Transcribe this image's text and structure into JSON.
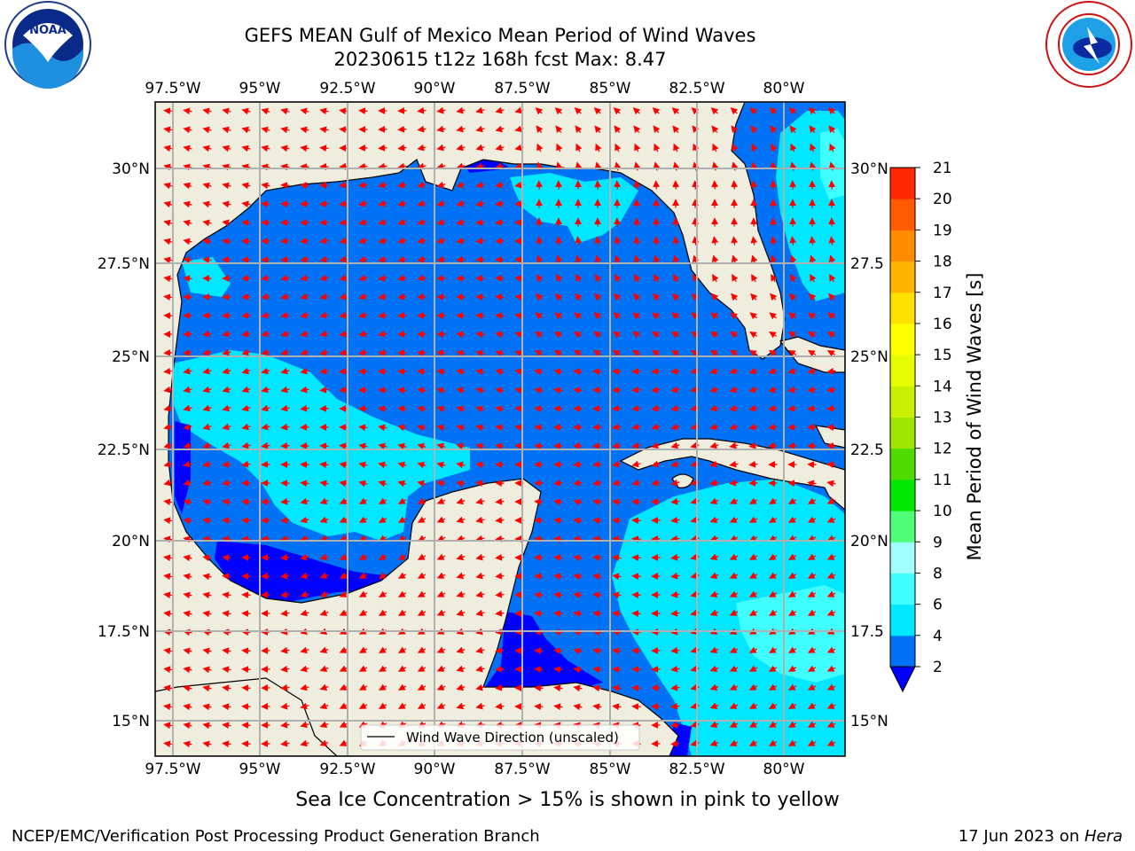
{
  "header": {
    "title_line1": "GEFS MEAN Gulf of Mexico Mean Period of Wind Waves",
    "title_line2": "20230615 t12z 168h fcst   Max: 8.47"
  },
  "logos": {
    "left": "noaa-logo",
    "right": "nws-logo"
  },
  "map": {
    "lon_labels": [
      "97.5°W",
      "95°W",
      "92.5°W",
      "90°W",
      "87.5°W",
      "85°W",
      "82.5°W",
      "80°W"
    ],
    "lat_labels_left": [
      "30°N",
      "27.5°N",
      "25°N",
      "22.5°N",
      "20°N",
      "17.5°N",
      "15°N"
    ],
    "lat_labels_right": [
      "30°N",
      "27.5",
      "25°N",
      "22.5",
      "20°N",
      "17.5",
      "15°N"
    ],
    "lon_range": [
      -98,
      -78.3
    ],
    "lat_range": [
      14,
      31.7
    ],
    "land_color": "#efedde",
    "legend_label": "Wind Wave Direction (unscaled)",
    "arrow_color": "#ff0000"
  },
  "colorbar": {
    "label": "Mean Period of Wind Waves [s]",
    "tick_labels": [
      "2",
      "4",
      "6",
      "8",
      "9",
      "10",
      "11",
      "12",
      "13",
      "14",
      "15",
      "16",
      "17",
      "18",
      "19",
      "20",
      "21"
    ],
    "colors": [
      "#0072f5",
      "#00e8ff",
      "#40ffff",
      "#a0ffff",
      "#50ff78",
      "#00e800",
      "#50dc00",
      "#9ee600",
      "#c8f000",
      "#e6ff00",
      "#ffff00",
      "#ffe000",
      "#ffb400",
      "#ff8c00",
      "#ff5a00",
      "#ff2800",
      "#ff0000"
    ],
    "extend_color": "#0000ff"
  },
  "footnote": "Sea Ice Concentration > 15% is shown in pink to yellow",
  "footer": {
    "left": "NCEP/EMC/Verification Post Processing Product Generation Branch",
    "right_prefix": "17 Jun 2023 on ",
    "right_machine": "Hera"
  }
}
